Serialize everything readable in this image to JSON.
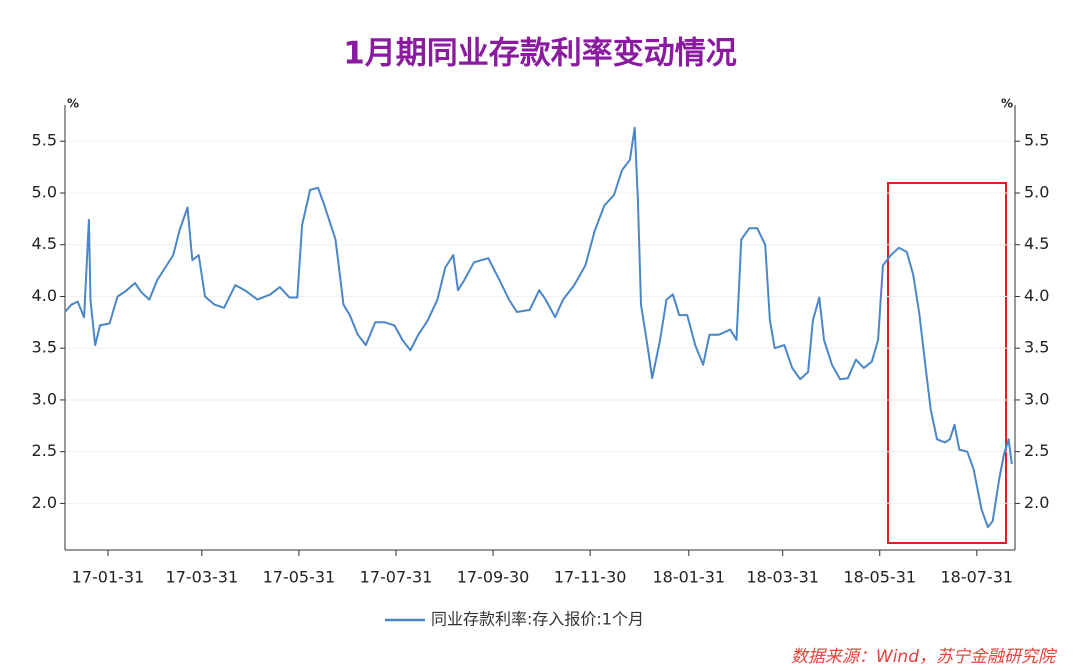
{
  "chart_data": {
    "type": "line",
    "title": "1月期同业存款利率变动情况",
    "y_unit": "%",
    "y2_unit": "%",
    "source": "数据来源：Wind，苏宁金融研究院",
    "xlim": [
      "17-01-04",
      "18-08-24"
    ],
    "xticks": [
      "17-01-31",
      "17-03-31",
      "17-05-31",
      "17-07-31",
      "17-09-30",
      "17-11-30",
      "18-01-31",
      "18-03-31",
      "18-05-31",
      "18-07-31"
    ],
    "ylim": [
      1.55,
      5.85
    ],
    "yticks": [
      {
        "value": 2,
        "label": "2.0"
      },
      2.5,
      {
        "value": 3,
        "label": "3.0"
      },
      3.5,
      {
        "value": 4,
        "label": "4.0"
      },
      4.5,
      {
        "value": 5,
        "label": "5.0"
      },
      5.5
    ],
    "y2lim": [
      1.55,
      5.85
    ],
    "y2ticks": [
      {
        "value": 2,
        "label": "2.0"
      },
      2.5,
      {
        "value": 3,
        "label": "3.0"
      },
      3.5,
      {
        "value": 4,
        "label": "4.0"
      },
      4.5,
      {
        "value": 5,
        "label": "5.0"
      },
      5.5
    ],
    "grid": true,
    "x": [
      "17-01-04",
      "17-01-08",
      "17-01-12",
      "17-01-16",
      "17-01-19",
      "17-01-20",
      "17-01-23",
      "17-01-26",
      "17-02-01",
      "17-02-06",
      "17-02-11",
      "17-02-17",
      "17-02-21",
      "17-02-26",
      "17-03-03",
      "17-03-08",
      "17-03-13",
      "17-03-17",
      "17-03-22",
      "17-03-25",
      "17-03-29",
      "17-04-02",
      "17-04-08",
      "17-04-14",
      "17-04-21",
      "17-04-27",
      "17-05-05",
      "17-05-13",
      "17-05-19",
      "17-05-25",
      "17-05-30",
      "17-06-02",
      "17-06-07",
      "17-06-12",
      "17-06-16",
      "17-06-23",
      "17-06-28",
      "17-07-02",
      "17-07-07",
      "17-07-12",
      "17-07-18",
      "17-07-24",
      "17-07-30",
      "17-08-04",
      "17-08-09",
      "17-08-14",
      "17-08-20",
      "17-08-26",
      "17-08-31",
      "17-09-05",
      "17-09-08",
      "17-09-12",
      "17-09-18",
      "17-09-27",
      "17-10-04",
      "17-10-10",
      "17-10-15",
      "17-10-23",
      "17-10-29",
      "17-11-02",
      "17-11-08",
      "17-11-13",
      "17-11-20",
      "17-11-27",
      "17-12-03",
      "17-12-09",
      "17-12-15",
      "17-12-20",
      "17-12-25",
      "17-12-28",
      "17-12-30",
      "18-01-01",
      "18-01-05",
      "18-01-08",
      "18-01-13",
      "18-01-17",
      "18-01-21",
      "18-01-25",
      "18-01-30",
      "18-02-04",
      "18-02-09",
      "18-02-13",
      "18-02-19",
      "18-02-26",
      "18-03-02",
      "18-03-05",
      "18-03-10",
      "18-03-15",
      "18-03-20",
      "18-03-23",
      "18-03-26",
      "18-04-01",
      "18-04-06",
      "18-04-11",
      "18-04-16",
      "18-04-19",
      "18-04-23",
      "18-04-26",
      "18-05-01",
      "18-05-06",
      "18-05-11",
      "18-05-16",
      "18-05-21",
      "18-05-26",
      "18-05-30",
      "18-06-02",
      "18-06-07",
      "18-06-12",
      "18-06-17",
      "18-06-21",
      "18-06-25",
      "18-06-29",
      "18-07-02",
      "18-07-06",
      "18-07-11",
      "18-07-14",
      "18-07-17",
      "18-07-20",
      "18-07-25",
      "18-07-29",
      "18-08-03",
      "18-08-07",
      "18-08-10",
      "18-08-14",
      "18-08-17",
      "18-08-20",
      "18-08-22"
    ],
    "series": [
      {
        "name": "同业存款利率:存入报价:1个月",
        "color": "#4a86c8",
        "values": [
          3.85,
          3.92,
          3.95,
          3.8,
          4.74,
          3.96,
          3.53,
          3.72,
          3.74,
          4.0,
          4.05,
          4.13,
          4.04,
          3.97,
          4.16,
          4.28,
          4.4,
          4.64,
          4.86,
          4.35,
          4.4,
          4.0,
          3.92,
          3.89,
          4.11,
          4.06,
          3.97,
          4.02,
          4.09,
          3.99,
          3.99,
          4.69,
          5.03,
          5.05,
          4.88,
          4.55,
          3.92,
          3.82,
          3.63,
          3.53,
          3.75,
          3.75,
          3.72,
          3.58,
          3.48,
          3.63,
          3.77,
          3.97,
          4.28,
          4.4,
          4.06,
          4.16,
          4.33,
          4.37,
          4.16,
          3.97,
          3.85,
          3.87,
          4.06,
          3.97,
          3.8,
          3.97,
          4.11,
          4.3,
          4.64,
          4.88,
          4.98,
          5.22,
          5.32,
          5.63,
          4.93,
          3.92,
          3.53,
          3.21,
          3.58,
          3.97,
          4.02,
          3.82,
          3.82,
          3.53,
          3.34,
          3.63,
          3.63,
          3.68,
          3.58,
          4.55,
          4.66,
          4.66,
          4.5,
          3.77,
          3.5,
          3.53,
          3.31,
          3.2,
          3.27,
          3.77,
          3.99,
          3.58,
          3.34,
          3.2,
          3.21,
          3.39,
          3.31,
          3.37,
          3.58,
          4.3,
          4.4,
          4.47,
          4.43,
          4.21,
          3.82,
          3.29,
          2.91,
          2.62,
          2.59,
          2.62,
          2.76,
          2.52,
          2.5,
          2.33,
          1.94,
          1.77,
          1.83,
          2.23,
          2.47,
          2.62,
          2.38
        ]
      }
    ]
  }
}
